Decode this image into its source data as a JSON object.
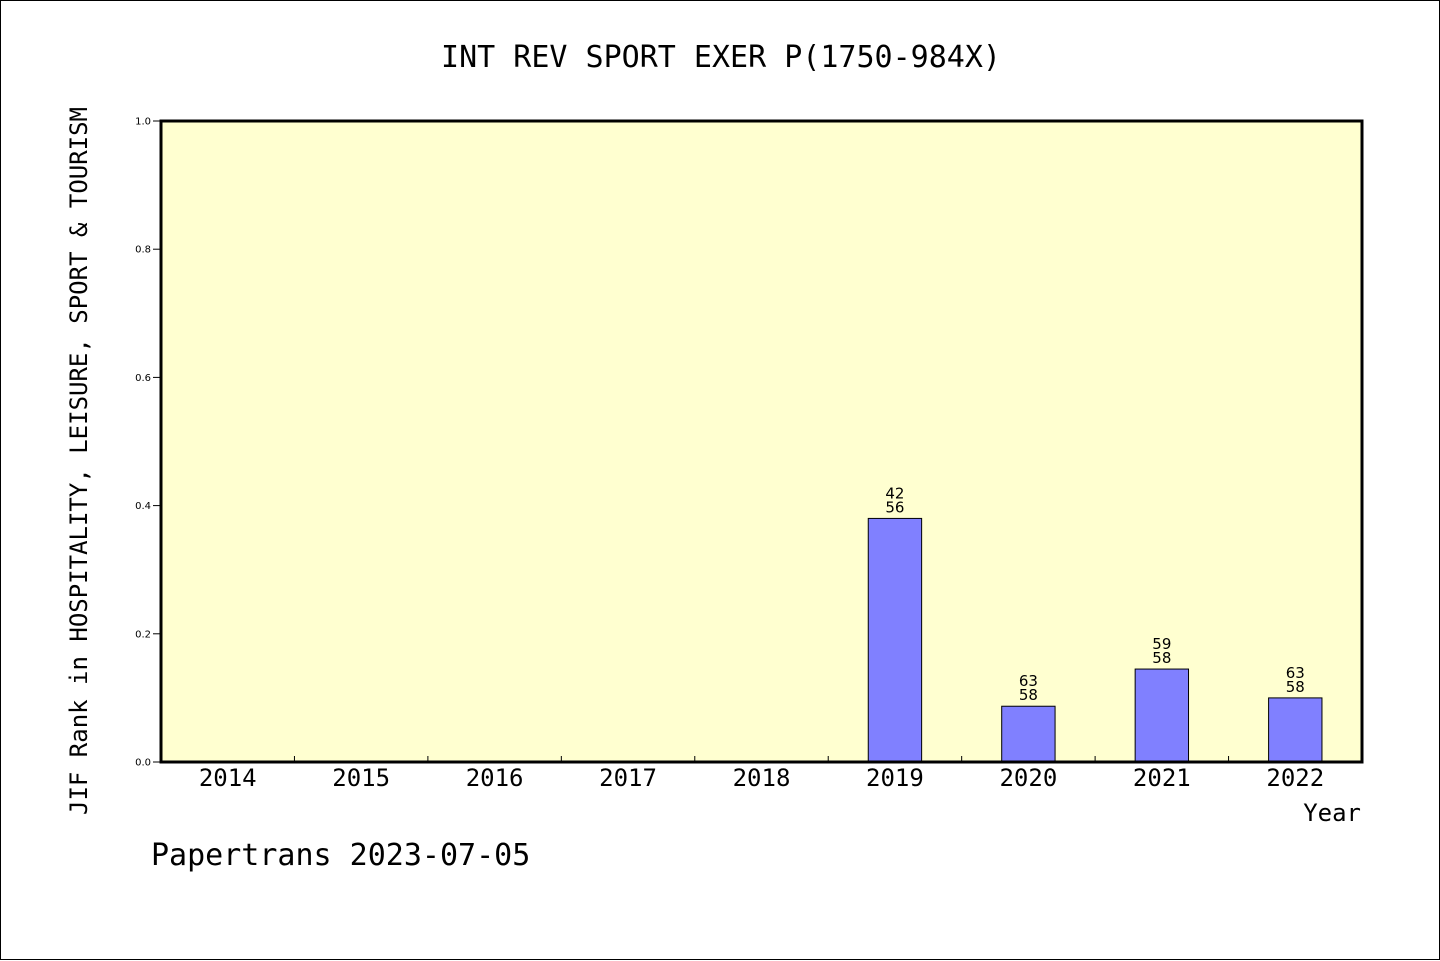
{
  "footer": "Papertrans 2023-07-05",
  "colors": {
    "plot_background": "#ffffd0",
    "bar_fill": "#8080ff",
    "bar_stroke": "#000000"
  },
  "chart_data": {
    "type": "bar",
    "title": "INT REV SPORT EXER P(1750-984X)",
    "xlabel": "Year",
    "ylabel": "JIF Rank in HOSPITALITY, LEISURE, SPORT & TOURISM",
    "ylim": [
      0,
      1.0
    ],
    "yticks": [
      "0.0",
      "0.2",
      "0.4",
      "0.6",
      "0.8",
      "1.0"
    ],
    "grid": false,
    "categories": [
      "2014",
      "2015",
      "2016",
      "2017",
      "2018",
      "2019",
      "2020",
      "2021",
      "2022"
    ],
    "values": [
      null,
      null,
      null,
      null,
      null,
      0.38,
      0.087,
      0.145,
      0.1
    ],
    "rank_labels": [
      null,
      null,
      null,
      null,
      null,
      "42",
      "63",
      "59",
      "63"
    ],
    "total_labels": [
      null,
      null,
      null,
      null,
      null,
      "56",
      "58",
      "58",
      "58"
    ]
  }
}
